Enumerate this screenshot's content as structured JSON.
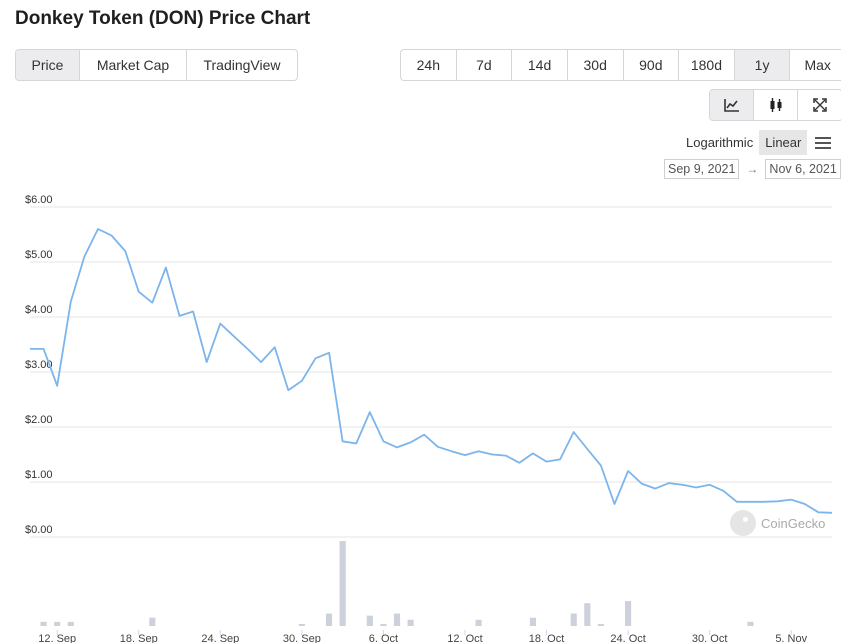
{
  "title": "Donkey Token (DON) Price Chart",
  "view_tabs": [
    {
      "label": "Price",
      "active": true
    },
    {
      "label": "Market Cap",
      "active": false
    },
    {
      "label": "TradingView",
      "active": false
    }
  ],
  "range_tabs": [
    {
      "label": "24h",
      "active": false
    },
    {
      "label": "7d",
      "active": false
    },
    {
      "label": "14d",
      "active": false
    },
    {
      "label": "30d",
      "active": false
    },
    {
      "label": "90d",
      "active": false
    },
    {
      "label": "180d",
      "active": false
    },
    {
      "label": "1y",
      "active": true
    },
    {
      "label": "Max",
      "active": false
    }
  ],
  "chart_type_icons": [
    {
      "icon": "line-chart-icon",
      "active": true
    },
    {
      "icon": "candlestick-icon",
      "active": false
    },
    {
      "icon": "fullscreen-icon",
      "active": false
    }
  ],
  "scale": {
    "logarithmic": "Logarithmic",
    "linear": "Linear",
    "active": "linear"
  },
  "date_range": {
    "from": "Sep 9, 2021",
    "arrow": "→",
    "to": "Nov 6, 2021"
  },
  "watermark": "CoinGecko",
  "colors": {
    "line": "#7cb5ec",
    "volume": "#ccd1db",
    "grid": "#e6e6e6"
  },
  "chart_data": {
    "type": "line",
    "title": "",
    "xlabel": "",
    "ylabel": "",
    "ylim": [
      0,
      6
    ],
    "y_ticks": [
      {
        "value": 0,
        "label": "$0.00"
      },
      {
        "value": 1,
        "label": "$1.00"
      },
      {
        "value": 2,
        "label": "$2.00"
      },
      {
        "value": 3,
        "label": "$3.00"
      },
      {
        "value": 4,
        "label": "$4.00"
      },
      {
        "value": 5,
        "label": "$5.00"
      },
      {
        "value": 6,
        "label": "$6.00"
      }
    ],
    "x_ticks": [
      {
        "index": 2,
        "label": "12. Sep"
      },
      {
        "index": 8,
        "label": "18. Sep"
      },
      {
        "index": 14,
        "label": "24. Sep"
      },
      {
        "index": 20,
        "label": "30. Sep"
      },
      {
        "index": 26,
        "label": "6. Oct"
      },
      {
        "index": 32,
        "label": "12. Oct"
      },
      {
        "index": 38,
        "label": "18. Oct"
      },
      {
        "index": 44,
        "label": "24. Oct"
      },
      {
        "index": 50,
        "label": "30. Oct"
      },
      {
        "index": 56,
        "label": "5. Nov"
      }
    ],
    "price": [
      3.42,
      3.42,
      2.75,
      4.28,
      5.1,
      5.6,
      5.48,
      5.2,
      4.46,
      4.26,
      4.9,
      4.02,
      4.1,
      3.18,
      3.88,
      3.65,
      3.42,
      3.18,
      3.45,
      2.67,
      2.84,
      3.25,
      3.35,
      1.74,
      1.7,
      2.27,
      1.74,
      1.63,
      1.72,
      1.86,
      1.64,
      1.56,
      1.49,
      1.56,
      1.5,
      1.48,
      1.35,
      1.52,
      1.37,
      1.41,
      1.91,
      1.6,
      1.3,
      0.6,
      1.2,
      0.97,
      0.88,
      0.98,
      0.95,
      0.9,
      0.95,
      0.84,
      0.64,
      0.64,
      0.64,
      0.65,
      0.68,
      0.6,
      0.45,
      0.44
    ],
    "volume": [
      0,
      0.04,
      0.04,
      0.04,
      0,
      0,
      0,
      0,
      0,
      0.08,
      0,
      0,
      0,
      0,
      0,
      0,
      0,
      0,
      0,
      0,
      0.02,
      0,
      0.12,
      0.82,
      0,
      0.1,
      0.02,
      0.12,
      0.06,
      0,
      0,
      0,
      0,
      0.06,
      0,
      0,
      0,
      0.08,
      0,
      0,
      0.12,
      0.22,
      0.02,
      0,
      0.24,
      0,
      0,
      0,
      0,
      0,
      0,
      0,
      0,
      0.04,
      0,
      0,
      0,
      0,
      0,
      0
    ]
  }
}
